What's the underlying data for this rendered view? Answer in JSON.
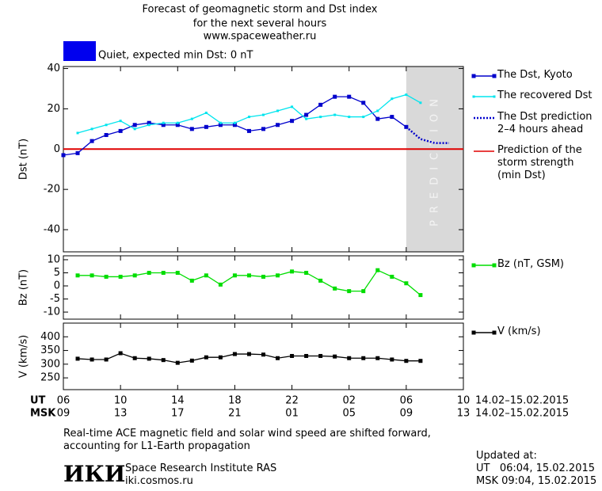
{
  "header": {
    "title_lines": [
      "Forecast of geomagnetic storm and Dst index",
      "for the next several hours",
      "www.spaceweather.ru"
    ],
    "status": {
      "text": "Quiet, expected min Dst: 0 nT",
      "color": "#0000ee"
    }
  },
  "chart_data": [
    {
      "type": "line",
      "ylabel": "Dst (nT)",
      "xlim": [
        0,
        28
      ],
      "ylim": [
        -51,
        41
      ],
      "yticks": [
        -40,
        -20,
        0,
        20,
        40
      ],
      "series": [
        {
          "name": "The Dst, Kyoto",
          "color": "#0000cc",
          "marker": "square",
          "x": [
            0,
            1,
            2,
            3,
            4,
            5,
            6,
            7,
            8,
            9,
            10,
            11,
            12,
            13,
            14,
            15,
            16,
            17,
            18,
            19,
            20,
            21,
            22,
            23,
            24
          ],
          "values": [
            -3,
            -2,
            4,
            7,
            9,
            12,
            13,
            12,
            12,
            10,
            11,
            12,
            12,
            9,
            10,
            12,
            14,
            17,
            22,
            26,
            26,
            23,
            15,
            16,
            11
          ]
        },
        {
          "name": "The recovered Dst",
          "color": "#00e5ee",
          "marker": "dot",
          "x": [
            1,
            2,
            3,
            4,
            5,
            6,
            7,
            8,
            9,
            10,
            11,
            12,
            13,
            14,
            15,
            16,
            17,
            18,
            19,
            20,
            21,
            22,
            23,
            24,
            25
          ],
          "values": [
            8,
            10,
            12,
            14,
            10,
            12,
            13,
            13,
            15,
            18,
            13,
            13,
            16,
            17,
            19,
            21,
            15,
            16,
            17,
            16,
            16,
            19,
            25,
            27,
            23
          ]
        },
        {
          "name": "The Dst prediction 2–4 hours ahead",
          "color": "#0000cc",
          "dotted": true,
          "x": [
            24,
            25,
            26,
            27
          ],
          "values": [
            11,
            5,
            3,
            3
          ]
        }
      ],
      "reference_lines": [
        {
          "name": "Prediction of the storm strength (min Dst)",
          "value": 0,
          "color": "#e00000"
        }
      ],
      "prediction_band": {
        "x": [
          24,
          28
        ],
        "label": "PREDICTION",
        "color": "#d9d9d9"
      }
    },
    {
      "type": "line",
      "ylabel": "Bz (nT)",
      "xlim": [
        0,
        28
      ],
      "ylim": [
        -12.7,
        11.5
      ],
      "yticks": [
        -10,
        -5,
        0,
        5,
        10
      ],
      "series": [
        {
          "name": "Bz (nT, GSM)",
          "color": "#00dd00",
          "marker": "square",
          "x": [
            1,
            2,
            3,
            4,
            5,
            6,
            7,
            8,
            9,
            10,
            11,
            12,
            13,
            14,
            15,
            16,
            17,
            18,
            19,
            20,
            21,
            22,
            23,
            24,
            25
          ],
          "values": [
            4,
            4,
            3.5,
            3.5,
            4,
            5,
            5,
            5,
            2,
            4,
            0.5,
            4,
            4,
            3.5,
            4,
            5.5,
            5,
            2,
            -1,
            -2,
            -2,
            6,
            3.5,
            1,
            -3.5
          ]
        }
      ]
    },
    {
      "type": "line",
      "ylabel": "V (km/s)",
      "xlim": [
        0,
        28
      ],
      "ylim": [
        207,
        450
      ],
      "yticks": [
        250,
        300,
        350,
        400
      ],
      "xtick_row_labels": [
        "UT",
        "MSK"
      ],
      "xticks": [
        {
          "value": 0,
          "label": "06"
        },
        {
          "value": 4,
          "label": "10"
        },
        {
          "value": 8,
          "label": "14"
        },
        {
          "value": 12,
          "label": "18"
        },
        {
          "value": 16,
          "label": "22"
        },
        {
          "value": 20,
          "label": "02"
        },
        {
          "value": 24,
          "label": "06"
        },
        {
          "value": 28,
          "label": "10"
        }
      ],
      "msk_ticks": [
        {
          "value": 0,
          "label": "09"
        },
        {
          "value": 4,
          "label": "13"
        },
        {
          "value": 8,
          "label": "17"
        },
        {
          "value": 12,
          "label": "21"
        },
        {
          "value": 16,
          "label": "01"
        },
        {
          "value": 20,
          "label": "05"
        },
        {
          "value": 24,
          "label": "09"
        },
        {
          "value": 28,
          "label": "13"
        }
      ],
      "date_range_labels": [
        "14.02–15.02.2015",
        "14.02–15.02.2015"
      ],
      "series": [
        {
          "name": "V (km/s)",
          "color": "#000000",
          "marker": "square",
          "x": [
            1,
            2,
            3,
            4,
            5,
            6,
            7,
            8,
            9,
            10,
            11,
            12,
            13,
            14,
            15,
            16,
            17,
            18,
            19,
            20,
            21,
            22,
            23,
            24,
            25
          ],
          "values": [
            320,
            317,
            317,
            340,
            322,
            320,
            315,
            305,
            313,
            325,
            325,
            337,
            337,
            335,
            322,
            330,
            330,
            330,
            328,
            322,
            322,
            322,
            317,
            312,
            312
          ]
        }
      ]
    }
  ],
  "footer": {
    "note": "Real-time ACE magnetic field and solar wind speed are shifted forward, accounting for L1-Earth propagation",
    "logo": "ИКИ",
    "institute": "Space Research Institute RAS",
    "site": "iki.cosmos.ru",
    "updated_label": "Updated at:",
    "updated_ut": "UT   06:04, 15.02.2015",
    "updated_msk": "MSK 09:04, 15.02.2015"
  }
}
